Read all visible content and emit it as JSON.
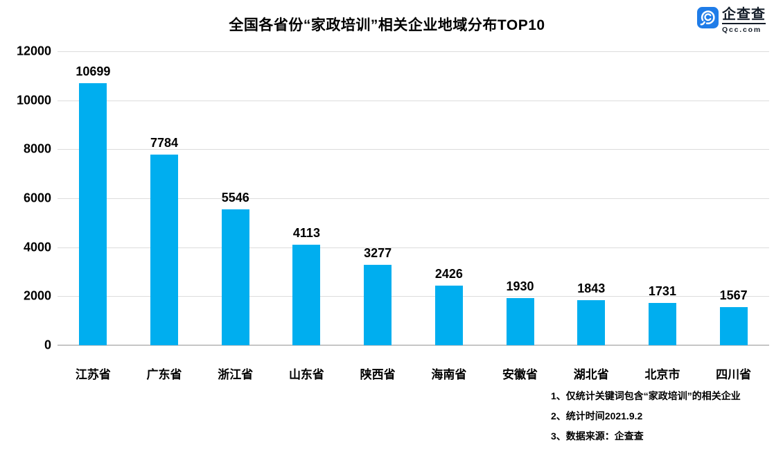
{
  "title": "全国各省份“家政培训”相关企业地域分布TOP10",
  "logo": {
    "name": "企查查",
    "domain": "Qcc.com",
    "icon": "qcc-magnifier-icon",
    "brand_color": "#1f7ce8"
  },
  "chart_data": {
    "type": "bar",
    "title": "全国各省份“家政培训”相关企业地域分布TOP10",
    "categories": [
      "江苏省",
      "广东省",
      "浙江省",
      "山东省",
      "陕西省",
      "海南省",
      "安徽省",
      "湖北省",
      "北京市",
      "四川省"
    ],
    "values": [
      10699,
      7784,
      5546,
      4113,
      3277,
      2426,
      1930,
      1843,
      1731,
      1567
    ],
    "xlabel": "",
    "ylabel": "",
    "ylim": [
      0,
      12000
    ],
    "ytick_step": 2000,
    "grid": true,
    "legend": false,
    "value_labels": true,
    "bar_color": "#00aeef",
    "gridline_color": "#dcdcdc"
  },
  "footnotes": [
    "1、仅统计关键词包含“家政培训”的相关企业",
    "2、统计时间2021.9.2",
    "3、数据来源：企查查"
  ]
}
